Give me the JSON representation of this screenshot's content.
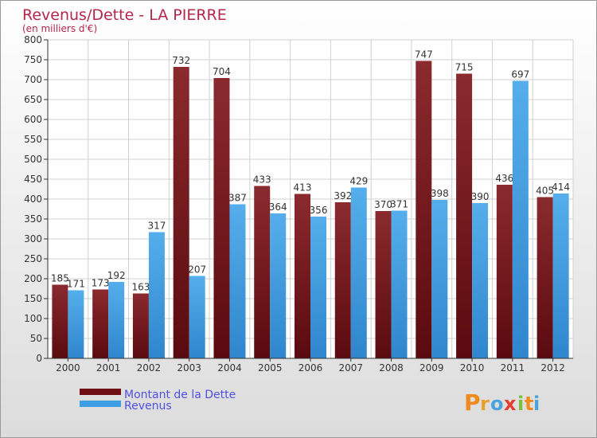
{
  "chart_data": {
    "type": "bar",
    "title": "Revenus/Dette - LA PIERRE",
    "subtitle": "(en milliers d'€)",
    "categories": [
      "2000",
      "2001",
      "2002",
      "2003",
      "2004",
      "2005",
      "2006",
      "2007",
      "2008",
      "2009",
      "2010",
      "2011",
      "2012"
    ],
    "series": [
      {
        "name": "Montant de la Dette",
        "color": "#6e0f14",
        "values": [
          185,
          173,
          163,
          732,
          704,
          433,
          413,
          392,
          370,
          747,
          715,
          436,
          405
        ]
      },
      {
        "name": "Revenus",
        "color": "#3f9fe4",
        "values": [
          171,
          192,
          317,
          207,
          387,
          364,
          356,
          429,
          371,
          398,
          390,
          697,
          414
        ]
      }
    ],
    "ylim": [
      0,
      800
    ],
    "yticks": [
      0,
      50,
      100,
      150,
      200,
      250,
      300,
      350,
      400,
      450,
      500,
      550,
      600,
      650,
      700,
      750,
      800
    ],
    "grid": true,
    "legend_position": "bottom-left"
  },
  "logo": {
    "text": "Proxiti",
    "letters": [
      "P",
      "r",
      "o",
      "x",
      "i",
      "t",
      "i"
    ]
  },
  "colors": {
    "title": "#b5264a",
    "subtitle": "#b5264a",
    "legend_text": "#5050e0",
    "background_top": "#ffffff",
    "background_bottom": "#dcdcdc"
  }
}
